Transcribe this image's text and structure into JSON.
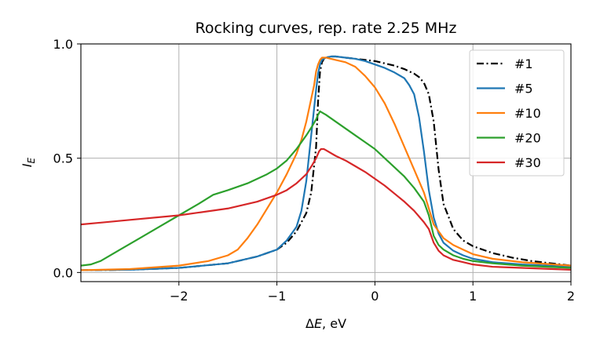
{
  "chart_data": {
    "type": "line",
    "title": "Rocking curves, rep. rate 2.25 MHz",
    "xlabel": "ΔE, eV",
    "xlabel_main": "Δ",
    "xlabel_var": "E",
    "xlabel_unit": ", eV",
    "ylabel": "I_E",
    "ylabel_main": "I",
    "ylabel_sub": "E",
    "xlim": [
      -3,
      2
    ],
    "ylim": [
      -0.04,
      1.0
    ],
    "xticks": [
      -2,
      -1,
      0,
      1,
      2
    ],
    "xtick_labels": [
      "−2",
      "−1",
      "0",
      "1",
      "2"
    ],
    "yticks": [
      0.0,
      0.5,
      1.0
    ],
    "ytick_labels": [
      "0.0",
      "0.5",
      "1.0"
    ],
    "grid": true,
    "legend_position": "top-right",
    "series": [
      {
        "name": "#1",
        "color": "#000000",
        "dash": "dash-dot",
        "x": [
          -3.0,
          -2.5,
          -2.0,
          -1.5,
          -1.2,
          -1.0,
          -0.9,
          -0.8,
          -0.7,
          -0.65,
          -0.6,
          -0.58,
          -0.56,
          -0.54,
          -0.52,
          -0.5,
          -0.45,
          -0.4,
          -0.3,
          -0.2,
          -0.1,
          0.0,
          0.1,
          0.2,
          0.3,
          0.4,
          0.45,
          0.5,
          0.55,
          0.6,
          0.65,
          0.7,
          0.8,
          0.9,
          1.0,
          1.2,
          1.4,
          1.6,
          1.8,
          2.0
        ],
        "y": [
          0.01,
          0.012,
          0.02,
          0.04,
          0.07,
          0.1,
          0.13,
          0.18,
          0.26,
          0.35,
          0.55,
          0.75,
          0.88,
          0.92,
          0.935,
          0.94,
          0.945,
          0.945,
          0.94,
          0.935,
          0.93,
          0.925,
          0.915,
          0.905,
          0.89,
          0.87,
          0.855,
          0.83,
          0.78,
          0.66,
          0.45,
          0.3,
          0.19,
          0.14,
          0.115,
          0.085,
          0.065,
          0.05,
          0.04,
          0.03
        ]
      },
      {
        "name": "#5",
        "color": "#1f77b4",
        "dash": "solid",
        "x": [
          -3.0,
          -2.5,
          -2.0,
          -1.5,
          -1.2,
          -1.0,
          -0.9,
          -0.8,
          -0.75,
          -0.7,
          -0.65,
          -0.6,
          -0.58,
          -0.56,
          -0.54,
          -0.5,
          -0.45,
          -0.4,
          -0.3,
          -0.2,
          -0.1,
          0.0,
          0.1,
          0.2,
          0.3,
          0.35,
          0.4,
          0.45,
          0.5,
          0.55,
          0.6,
          0.65,
          0.7,
          0.8,
          0.9,
          1.0,
          1.2,
          1.5,
          2.0
        ],
        "y": [
          0.01,
          0.012,
          0.02,
          0.04,
          0.07,
          0.1,
          0.14,
          0.2,
          0.27,
          0.4,
          0.6,
          0.8,
          0.87,
          0.91,
          0.93,
          0.94,
          0.945,
          0.945,
          0.94,
          0.935,
          0.925,
          0.91,
          0.895,
          0.875,
          0.85,
          0.82,
          0.78,
          0.68,
          0.53,
          0.36,
          0.24,
          0.17,
          0.13,
          0.095,
          0.075,
          0.06,
          0.045,
          0.035,
          0.025
        ]
      },
      {
        "name": "#10",
        "color": "#ff7f0e",
        "dash": "solid",
        "x": [
          -3.0,
          -2.5,
          -2.0,
          -1.7,
          -1.5,
          -1.4,
          -1.3,
          -1.2,
          -1.1,
          -1.0,
          -0.9,
          -0.8,
          -0.75,
          -0.7,
          -0.66,
          -0.62,
          -0.6,
          -0.58,
          -0.56,
          -0.54,
          -0.5,
          -0.45,
          -0.4,
          -0.3,
          -0.2,
          -0.1,
          0.0,
          0.1,
          0.2,
          0.3,
          0.4,
          0.5,
          0.6,
          0.7,
          0.8,
          0.9,
          1.0,
          1.2,
          1.5,
          2.0
        ],
        "y": [
          0.01,
          0.015,
          0.03,
          0.05,
          0.075,
          0.1,
          0.15,
          0.21,
          0.28,
          0.35,
          0.43,
          0.52,
          0.58,
          0.66,
          0.74,
          0.82,
          0.88,
          0.91,
          0.93,
          0.94,
          0.94,
          0.935,
          0.93,
          0.92,
          0.9,
          0.86,
          0.81,
          0.74,
          0.65,
          0.55,
          0.45,
          0.35,
          0.21,
          0.15,
          0.12,
          0.1,
          0.08,
          0.06,
          0.045,
          0.03
        ]
      },
      {
        "name": "#20",
        "color": "#2ca02c",
        "dash": "solid",
        "x": [
          -3.0,
          -2.9,
          -2.8,
          -2.6,
          -2.4,
          -2.2,
          -2.0,
          -1.8,
          -1.65,
          -1.5,
          -1.3,
          -1.1,
          -1.0,
          -0.9,
          -0.8,
          -0.7,
          -0.64,
          -0.6,
          -0.58,
          -0.56,
          -0.54,
          -0.5,
          -0.45,
          -0.4,
          -0.3,
          -0.2,
          -0.1,
          0.0,
          0.1,
          0.2,
          0.3,
          0.4,
          0.5,
          0.55,
          0.6,
          0.65,
          0.7,
          0.8,
          0.9,
          1.0,
          1.2,
          1.5,
          2.0
        ],
        "y": [
          0.03,
          0.035,
          0.05,
          0.1,
          0.15,
          0.2,
          0.25,
          0.3,
          0.34,
          0.36,
          0.39,
          0.43,
          0.455,
          0.49,
          0.54,
          0.6,
          0.64,
          0.67,
          0.69,
          0.705,
          0.7,
          0.69,
          0.675,
          0.66,
          0.63,
          0.6,
          0.57,
          0.54,
          0.5,
          0.46,
          0.42,
          0.37,
          0.31,
          0.25,
          0.16,
          0.12,
          0.1,
          0.075,
          0.06,
          0.05,
          0.04,
          0.03,
          0.02
        ]
      },
      {
        "name": "#30",
        "color": "#d62728",
        "dash": "solid",
        "x": [
          -3.0,
          -2.5,
          -2.0,
          -1.5,
          -1.2,
          -1.0,
          -0.9,
          -0.8,
          -0.7,
          -0.64,
          -0.6,
          -0.57,
          -0.55,
          -0.52,
          -0.5,
          -0.4,
          -0.3,
          -0.2,
          -0.1,
          0.0,
          0.1,
          0.2,
          0.3,
          0.4,
          0.5,
          0.55,
          0.6,
          0.65,
          0.7,
          0.8,
          0.9,
          1.0,
          1.2,
          1.5,
          2.0
        ],
        "y": [
          0.21,
          0.23,
          0.25,
          0.28,
          0.31,
          0.34,
          0.36,
          0.39,
          0.43,
          0.47,
          0.5,
          0.53,
          0.54,
          0.54,
          0.535,
          0.51,
          0.49,
          0.465,
          0.44,
          0.41,
          0.38,
          0.345,
          0.31,
          0.27,
          0.22,
          0.19,
          0.13,
          0.095,
          0.075,
          0.055,
          0.045,
          0.035,
          0.025,
          0.02,
          0.012
        ]
      }
    ]
  }
}
